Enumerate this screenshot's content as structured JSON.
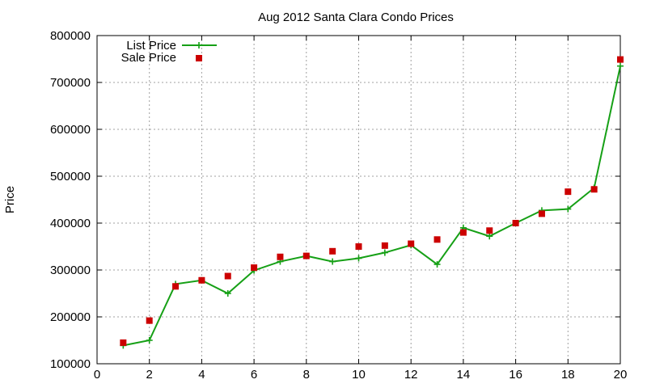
{
  "chart_data": {
    "type": "line",
    "title": "Aug 2012 Santa Clara Condo Prices",
    "xlabel": "",
    "ylabel": "Price",
    "xlim": [
      0,
      20
    ],
    "ylim": [
      100000,
      800000
    ],
    "x_ticks": [
      0,
      2,
      4,
      6,
      8,
      10,
      12,
      14,
      16,
      18,
      20
    ],
    "y_ticks": [
      100000,
      200000,
      300000,
      400000,
      500000,
      600000,
      700000,
      800000
    ],
    "grid": true,
    "legend_position": "top-left",
    "series": [
      {
        "name": "List Price",
        "style": "line-with-plus-markers",
        "color": "#16a016",
        "x": [
          1,
          2,
          3,
          4,
          5,
          6,
          7,
          8,
          9,
          10,
          11,
          12,
          13,
          14,
          15,
          16,
          17,
          18,
          19,
          20
        ],
        "y": [
          139000,
          150000,
          270000,
          278000,
          250000,
          299000,
          318000,
          330000,
          318000,
          325000,
          337000,
          353000,
          312000,
          390000,
          372000,
          400000,
          427000,
          430000,
          475000,
          735000
        ]
      },
      {
        "name": "Sale Price",
        "style": "square-markers",
        "color": "#cc0000",
        "x": [
          1,
          2,
          3,
          4,
          5,
          6,
          7,
          8,
          9,
          10,
          11,
          12,
          13,
          14,
          15,
          16,
          17,
          18,
          19,
          20
        ],
        "y": [
          145000,
          192000,
          265000,
          278000,
          287000,
          305000,
          328000,
          330000,
          340000,
          350000,
          352000,
          356000,
          365000,
          380000,
          384000,
          400000,
          420000,
          467000,
          472000,
          749000
        ]
      }
    ]
  }
}
